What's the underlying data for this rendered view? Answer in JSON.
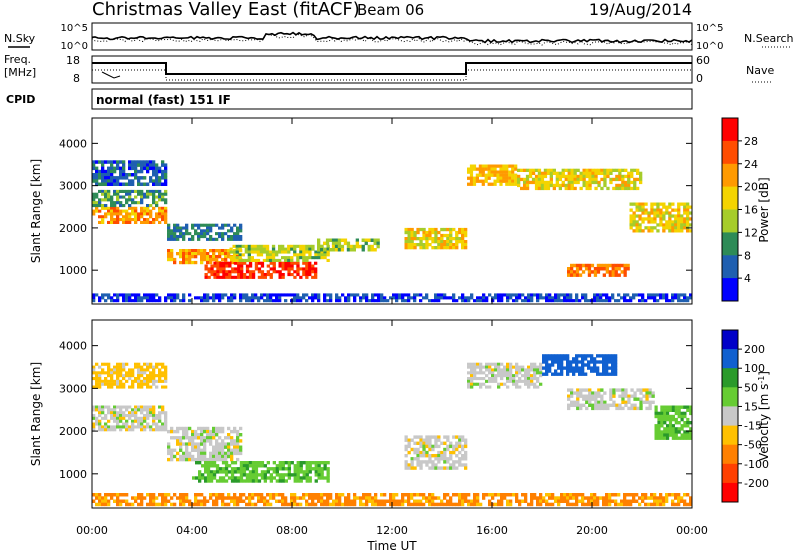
{
  "header": {
    "station": "Christmas Valley East (fitACF)",
    "beam": "Beam 06",
    "date": "19/Aug/2014"
  },
  "strip": {
    "nsky_label": "N.Sky",
    "nsearch_label": "N.Search",
    "freq_label_1": "Freq.",
    "freq_label_2": "[MHz]",
    "nave_label": "Nave",
    "cpid_label": "CPID",
    "cpid_value": "normal (fast) 151 IF",
    "noise_left_ticks": [
      "10^5",
      "10^0"
    ],
    "noise_right_ticks": [
      "10^5",
      "10^0"
    ],
    "freq_left_ticks": [
      "18",
      "8"
    ],
    "freq_right_ticks": [
      "60",
      "0"
    ]
  },
  "axes": {
    "xlabel": "Time UT",
    "xticks": [
      "00:00",
      "04:00",
      "08:00",
      "12:00",
      "16:00",
      "20:00",
      "00:00"
    ],
    "ylabel_prefix": "Slant Range ",
    "ylabel_unit": "[km]",
    "yticks": [
      "1000",
      "2000",
      "3000",
      "4000"
    ]
  },
  "colorbars": {
    "power": {
      "label_prefix": "Power ",
      "label_unit": "[dB]",
      "ticks": [
        "28",
        "24",
        "20",
        "16",
        "12",
        "8",
        "4"
      ],
      "colors": [
        "#ff0000",
        "#ff4d00",
        "#ff9a00",
        "#f4d400",
        "#a6cc2a",
        "#2e8b57",
        "#1f5fb0",
        "#0000ff"
      ]
    },
    "velocity": {
      "label_prefix": "Velocity ",
      "label_unit": "[m s",
      "label_sup": "-1",
      "label_close": "]",
      "ticks": [
        "200",
        "100",
        "50",
        "15",
        "-15",
        "-50",
        "-100",
        "-200"
      ],
      "colors": [
        "#0000c8",
        "#1060d0",
        "#2a9a2a",
        "#66cc33",
        "#c8c8c8",
        "#ffc000",
        "#ff8000",
        "#ff4000",
        "#ff0000"
      ]
    }
  },
  "chart_data": [
    {
      "type": "heatmap",
      "title": "Power",
      "xlabel": "Time UT",
      "ylabel": "Slant Range [km]",
      "xlim": [
        0,
        24
      ],
      "ylim": [
        200,
        4600
      ],
      "zlim": [
        0,
        32
      ],
      "units": "dB",
      "bands": [
        {
          "t0": 0.0,
          "t1": 3.0,
          "r0": 3000,
          "r1": 3600,
          "z": 6
        },
        {
          "t0": 0.0,
          "t1": 3.0,
          "r0": 2100,
          "r1": 2500,
          "z": 22
        },
        {
          "t0": 0.0,
          "t1": 3.0,
          "r0": 2500,
          "r1": 2900,
          "z": 10
        },
        {
          "t0": 3.0,
          "t1": 6.0,
          "r0": 1150,
          "r1": 1500,
          "z": 22
        },
        {
          "t0": 3.0,
          "t1": 6.0,
          "r0": 1700,
          "r1": 2100,
          "z": 8
        },
        {
          "t0": 4.5,
          "t1": 9.0,
          "r0": 800,
          "r1": 1200,
          "z": 28
        },
        {
          "t0": 5.5,
          "t1": 9.5,
          "r0": 1200,
          "r1": 1600,
          "z": 15
        },
        {
          "t0": 9.0,
          "t1": 11.5,
          "r0": 1450,
          "r1": 1750,
          "z": 14
        },
        {
          "t0": 12.5,
          "t1": 15.0,
          "r0": 1500,
          "r1": 2000,
          "z": 18
        },
        {
          "t0": 15.0,
          "t1": 17.0,
          "r0": 3000,
          "r1": 3500,
          "z": 20
        },
        {
          "t0": 17.0,
          "t1": 22.0,
          "r0": 2900,
          "r1": 3400,
          "z": 18
        },
        {
          "t0": 19.0,
          "t1": 21.5,
          "r0": 850,
          "r1": 1150,
          "z": 24
        },
        {
          "t0": 21.5,
          "t1": 24.0,
          "r0": 1900,
          "r1": 2600,
          "z": 18
        },
        {
          "t0": 0.0,
          "t1": 24.0,
          "r0": 250,
          "r1": 450,
          "z": 4
        }
      ]
    },
    {
      "type": "heatmap",
      "title": "Velocity",
      "xlabel": "Time UT",
      "ylabel": "Slant Range [km]",
      "xlim": [
        0,
        24
      ],
      "ylim": [
        200,
        4600
      ],
      "zlim": [
        -200,
        200
      ],
      "units": "m s^-1",
      "bands": [
        {
          "t0": 0.0,
          "t1": 3.0,
          "r0": 2000,
          "r1": 2600,
          "z": 0
        },
        {
          "t0": 0.0,
          "t1": 3.0,
          "r0": 3000,
          "r1": 3600,
          "z": -30
        },
        {
          "t0": 3.0,
          "t1": 6.0,
          "r0": 1300,
          "r1": 2100,
          "z": 0
        },
        {
          "t0": 4.0,
          "t1": 9.5,
          "r0": 800,
          "r1": 1300,
          "z": 40
        },
        {
          "t0": 12.5,
          "t1": 15.0,
          "r0": 1100,
          "r1": 1900,
          "z": 0
        },
        {
          "t0": 15.0,
          "t1": 18.0,
          "r0": 3000,
          "r1": 3600,
          "z": 0
        },
        {
          "t0": 18.0,
          "t1": 21.0,
          "r0": 3300,
          "r1": 3800,
          "z": 180
        },
        {
          "t0": 19.0,
          "t1": 22.5,
          "r0": 2500,
          "r1": 3000,
          "z": 0
        },
        {
          "t0": 22.5,
          "t1": 24.0,
          "r0": 1800,
          "r1": 2600,
          "z": 40
        },
        {
          "t0": 0.0,
          "t1": 24.0,
          "r0": 250,
          "r1": 550,
          "z": -60
        }
      ]
    }
  ]
}
